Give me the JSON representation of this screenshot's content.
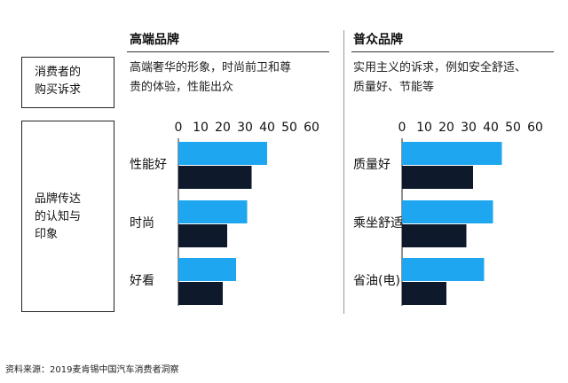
{
  "left_labels": {
    "needs_line1": "消费者的",
    "needs_line2": "购买诉求",
    "impression_line1": "品牌传达",
    "impression_line2": "的认知与",
    "impression_line3": "印象"
  },
  "columns": [
    {
      "title": "高端品牌",
      "desc_line1": "高端奢华的形象，时尚前卫和尊",
      "desc_line2": "贵的体验，性能出众"
    },
    {
      "title": "普众品牌",
      "desc_line1": "实用主义的诉求，例如安全舒适、",
      "desc_line2": "质量好、节能等"
    }
  ],
  "source": "资料来源：2019麦肯锡中国汽车消费者洞察",
  "colors": {
    "light": "#1ea7f0",
    "dark": "#0e1a2c"
  },
  "chart_data": [
    {
      "type": "bar",
      "orientation": "horizontal",
      "categories": [
        "性能好",
        "时尚",
        "好看"
      ],
      "series": [
        {
          "values": [
            40,
            31,
            26
          ]
        },
        {
          "values": [
            33,
            22,
            20
          ]
        }
      ],
      "xlim": [
        0,
        60
      ],
      "xticks": [
        0,
        10,
        20,
        30,
        40,
        50,
        60
      ]
    },
    {
      "type": "bar",
      "orientation": "horizontal",
      "categories": [
        "质量好",
        "乘坐舒适",
        "省油(电)"
      ],
      "series": [
        {
          "values": [
            45,
            41,
            37
          ]
        },
        {
          "values": [
            32,
            29,
            20
          ]
        }
      ],
      "xlim": [
        0,
        60
      ],
      "xticks": [
        0,
        10,
        20,
        30,
        40,
        50,
        60
      ]
    }
  ]
}
